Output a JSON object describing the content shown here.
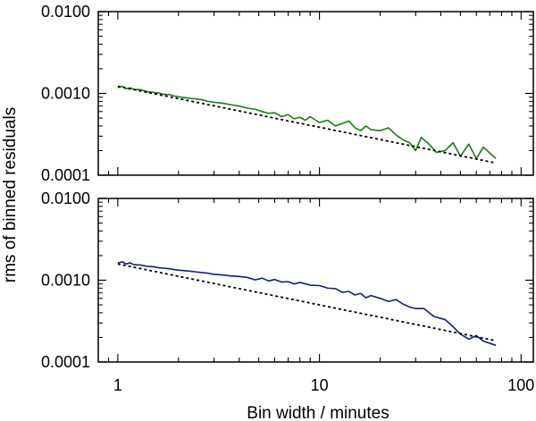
{
  "figure": {
    "ylabel": "rms of binned residuals",
    "xlabel": "Bin width / minutes"
  },
  "chart_data": [
    {
      "type": "line",
      "xscale": "log",
      "yscale": "log",
      "xlim": [
        0.8,
        115
      ],
      "ylim": [
        0.0001,
        0.01
      ],
      "y_ticks": [
        "0.0100",
        "0.0010",
        "0.0001"
      ],
      "x_tick_labels_shown": false,
      "colors": {
        "series": "#1a7a1a",
        "model": "#000000"
      },
      "series": [
        {
          "style": "solid",
          "points": [
            [
              1.0,
              0.00118
            ],
            [
              1.05,
              0.00122
            ],
            [
              1.1,
              0.00114
            ],
            [
              1.15,
              0.00117
            ],
            [
              1.2,
              0.00112
            ],
            [
              1.3,
              0.00111
            ],
            [
              1.4,
              0.00105
            ],
            [
              1.5,
              0.00103
            ],
            [
              1.6,
              0.00101
            ],
            [
              1.7,
              0.00097
            ],
            [
              1.8,
              0.00097
            ],
            [
              1.9,
              0.00093
            ],
            [
              2.0,
              0.00091
            ],
            [
              2.2,
              0.00088
            ],
            [
              2.4,
              0.00086
            ],
            [
              2.6,
              0.00084
            ],
            [
              2.8,
              0.0008
            ],
            [
              3.0,
              0.00078
            ],
            [
              3.3,
              0.00076
            ],
            [
              3.6,
              0.00073
            ],
            [
              4.0,
              0.0007
            ],
            [
              4.4,
              0.00066
            ],
            [
              4.8,
              0.00064
            ],
            [
              5.2,
              0.0006
            ],
            [
              5.6,
              0.00057
            ],
            [
              6.0,
              0.00058
            ],
            [
              6.5,
              0.00052
            ],
            [
              7.0,
              0.00055
            ],
            [
              7.5,
              0.00049
            ],
            [
              8.0,
              0.00051
            ],
            [
              8.5,
              0.00047
            ],
            [
              9.0,
              0.00052
            ],
            [
              10.0,
              0.00044
            ],
            [
              11.0,
              0.00047
            ],
            [
              12.0,
              0.0004
            ],
            [
              13.0,
              0.00043
            ],
            [
              14.0,
              0.00046
            ],
            [
              15.0,
              0.00038
            ],
            [
              16.0,
              0.00035
            ],
            [
              17.0,
              0.0004
            ],
            [
              18.0,
              0.00036
            ],
            [
              20.0,
              0.00035
            ],
            [
              22.0,
              0.00038
            ],
            [
              24.0,
              0.00031
            ],
            [
              26.0,
              0.00027
            ],
            [
              28.0,
              0.00025
            ],
            [
              30.0,
              0.0002
            ],
            [
              32.0,
              0.00029
            ],
            [
              35.0,
              0.00024
            ],
            [
              38.0,
              0.00019
            ],
            [
              42.0,
              0.0002
            ],
            [
              46.0,
              0.00025
            ],
            [
              50.0,
              0.00017
            ],
            [
              55.0,
              0.00024
            ],
            [
              60.0,
              0.00016
            ],
            [
              65.0,
              0.00022
            ],
            [
              75.0,
              0.00016
            ]
          ]
        },
        {
          "style": "dotted",
          "points": [
            [
              1.0,
              0.00122
            ],
            [
              75.0,
              0.000141
            ]
          ]
        }
      ]
    },
    {
      "type": "line",
      "xscale": "log",
      "yscale": "log",
      "xlim": [
        0.8,
        115
      ],
      "ylim": [
        0.0001,
        0.01
      ],
      "x_ticks": [
        "1",
        "10",
        "100"
      ],
      "y_ticks": [
        "0.0100",
        "0.0010",
        "0.0001"
      ],
      "colors": {
        "series": "#141c82",
        "model": "#000000"
      },
      "series": [
        {
          "style": "solid",
          "points": [
            [
              1.0,
              0.00162
            ],
            [
              1.05,
              0.00168
            ],
            [
              1.1,
              0.00158
            ],
            [
              1.15,
              0.00163
            ],
            [
              1.2,
              0.00155
            ],
            [
              1.3,
              0.00153
            ],
            [
              1.4,
              0.00148
            ],
            [
              1.5,
              0.00146
            ],
            [
              1.6,
              0.00142
            ],
            [
              1.7,
              0.0014
            ],
            [
              1.8,
              0.00138
            ],
            [
              1.9,
              0.00135
            ],
            [
              2.0,
              0.00133
            ],
            [
              2.2,
              0.0013
            ],
            [
              2.4,
              0.00127
            ],
            [
              2.6,
              0.00124
            ],
            [
              2.8,
              0.00122
            ],
            [
              3.0,
              0.00118
            ],
            [
              3.3,
              0.00116
            ],
            [
              3.6,
              0.00113
            ],
            [
              4.0,
              0.00111
            ],
            [
              4.4,
              0.00108
            ],
            [
              4.8,
              0.00101
            ],
            [
              5.2,
              0.00106
            ],
            [
              5.6,
              0.00098
            ],
            [
              6.0,
              0.00102
            ],
            [
              6.5,
              0.00095
            ],
            [
              7.0,
              0.00096
            ],
            [
              7.5,
              0.0009
            ],
            [
              8.0,
              0.00094
            ],
            [
              9.0,
              0.00087
            ],
            [
              10.0,
              0.00086
            ],
            [
              11.0,
              0.0008
            ],
            [
              12.0,
              0.00079
            ],
            [
              13.0,
              0.00071
            ],
            [
              14.0,
              0.00073
            ],
            [
              15.0,
              0.00066
            ],
            [
              16.0,
              0.00069
            ],
            [
              17.0,
              0.00061
            ],
            [
              18.0,
              0.00065
            ],
            [
              20.0,
              0.0006
            ],
            [
              22.0,
              0.00055
            ],
            [
              24.0,
              0.00058
            ],
            [
              26.0,
              0.00051
            ],
            [
              28.0,
              0.00047
            ],
            [
              30.0,
              0.00045
            ],
            [
              33.0,
              0.00045
            ],
            [
              37.0,
              0.00036
            ],
            [
              42.0,
              0.00033
            ],
            [
              46.0,
              0.00027
            ],
            [
              50.0,
              0.00022
            ],
            [
              55.0,
              0.00019
            ],
            [
              60.0,
              0.00021
            ],
            [
              65.0,
              0.00018
            ],
            [
              75.0,
              0.00016
            ]
          ]
        },
        {
          "style": "dotted",
          "points": [
            [
              1.0,
              0.00158
            ],
            [
              75.0,
              0.000182
            ]
          ]
        }
      ]
    }
  ]
}
